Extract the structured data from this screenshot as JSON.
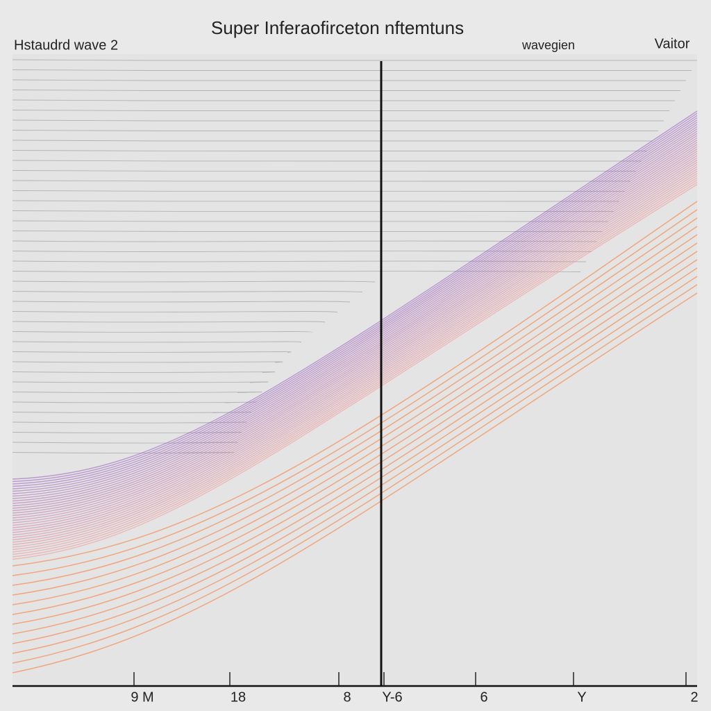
{
  "header": {
    "title": "Super Inferaofirceton nftemtuns",
    "left_label": "Hstaudrd wave 2",
    "legend_label": "wavegien",
    "right_label": "Vaitor"
  },
  "x_axis": {
    "labels": [
      "9 M",
      "18",
      "8",
      "Y-6",
      "6",
      "Y",
      "2"
    ]
  }
}
